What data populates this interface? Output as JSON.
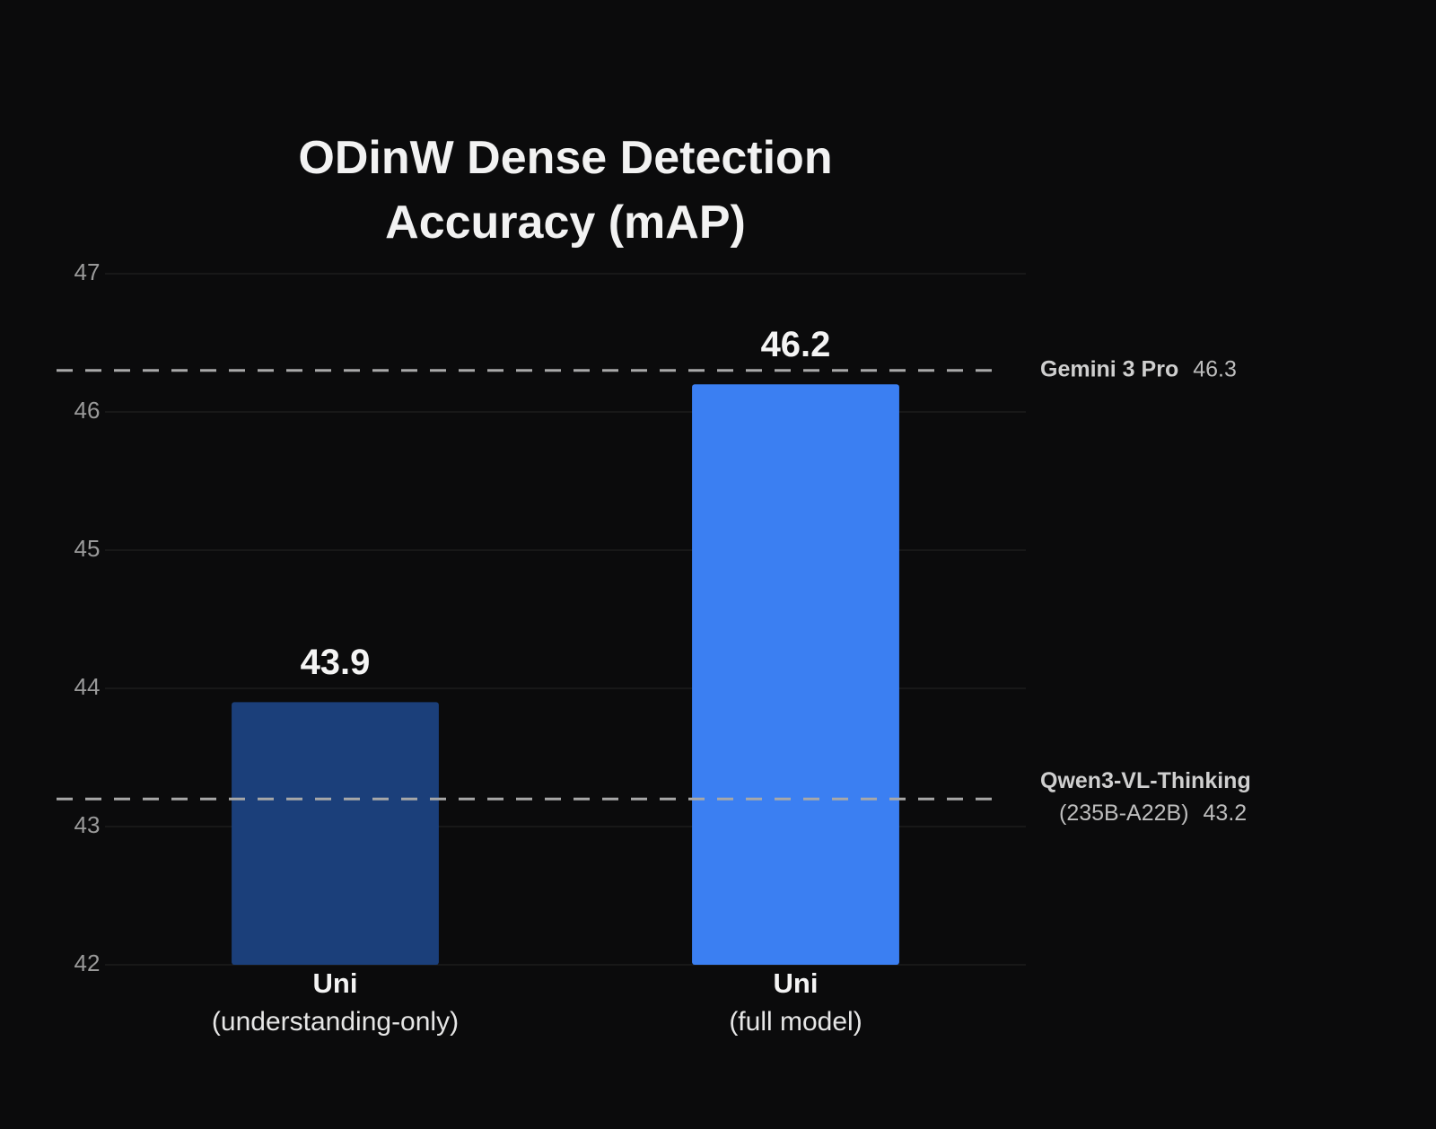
{
  "chart_data": {
    "type": "bar",
    "title": "ODinW Dense Detection Accuracy (mAP)",
    "categories": [
      "Uni",
      "Uni"
    ],
    "category_notes": [
      "(understanding-only)",
      "(full model)"
    ],
    "values": [
      43.9,
      46.2
    ],
    "colors": [
      "#1b3f7a",
      "#3b7ff2"
    ],
    "ylim": [
      42,
      47
    ],
    "yticks": [
      42,
      43,
      44,
      45,
      46,
      47
    ],
    "grid": true,
    "reference_lines": [
      {
        "name": "Gemini 3 Pro",
        "value": 46.3
      },
      {
        "name": "Qwen3-VL-Thinking",
        "detail": "(235B-A22B)",
        "value": 43.2
      }
    ]
  }
}
